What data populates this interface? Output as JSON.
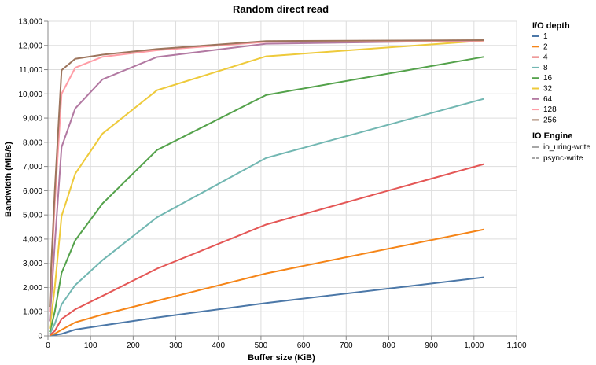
{
  "chart_data": {
    "type": "line",
    "title": "Random direct read",
    "xlabel": "Buffer size (KiB)",
    "ylabel": "Bandwidth (MiB/s)",
    "xlim": [
      0,
      1100
    ],
    "ylim": [
      0,
      13000
    ],
    "x_ticks": [
      0,
      100,
      200,
      300,
      400,
      500,
      600,
      700,
      800,
      900,
      1000,
      1100
    ],
    "y_ticks": [
      0,
      1000,
      2000,
      3000,
      4000,
      5000,
      6000,
      7000,
      8000,
      9000,
      10000,
      11000,
      12000,
      13000
    ],
    "x_tick_labels": [
      "0",
      "100",
      "200",
      "300",
      "400",
      "500",
      "600",
      "700",
      "800",
      "900",
      "1,000",
      "1,100"
    ],
    "y_tick_labels": [
      "0",
      "1,000",
      "2,000",
      "3,000",
      "4,000",
      "5,000",
      "6,000",
      "7,000",
      "8,000",
      "9,000",
      "10,000",
      "11,000",
      "12,000",
      "13,000"
    ],
    "grid": true,
    "legend_position": "right",
    "legend_title_color": "I/O depth",
    "legend_title_engine": "IO Engine",
    "x": [
      4,
      8,
      16,
      32,
      64,
      128,
      256,
      512,
      1024
    ],
    "series": [
      {
        "name": "1",
        "color": "#4c78a8",
        "values": [
          10,
          20,
          40,
          80,
          260,
          430,
          760,
          1360,
          2420
        ]
      },
      {
        "name": "2",
        "color": "#f58518",
        "values": [
          20,
          45,
          90,
          250,
          560,
          880,
          1450,
          2580,
          4400
        ]
      },
      {
        "name": "4",
        "color": "#e45756",
        "values": [
          40,
          90,
          200,
          700,
          1100,
          1650,
          2780,
          4600,
          7100
        ]
      },
      {
        "name": "8",
        "color": "#72b7b2",
        "values": [
          80,
          200,
          500,
          1300,
          2100,
          3130,
          4900,
          7350,
          9800
        ]
      },
      {
        "name": "16",
        "color": "#54a24b",
        "values": [
          160,
          400,
          1000,
          2600,
          3950,
          5470,
          7680,
          9950,
          11530
        ]
      },
      {
        "name": "32",
        "color": "#eeca3b",
        "values": [
          300,
          800,
          2000,
          4950,
          6700,
          8360,
          10150,
          11550,
          12200
        ]
      },
      {
        "name": "64",
        "color": "#b279a2",
        "values": [
          600,
          1600,
          3800,
          7800,
          9400,
          10600,
          11520,
          12070,
          12200
        ]
      },
      {
        "name": "128",
        "color": "#ff9da6",
        "values": [
          1000,
          2600,
          5500,
          10000,
          11080,
          11530,
          11800,
          12150,
          12200
        ]
      },
      {
        "name": "256",
        "color": "#9d755d",
        "values": [
          1200,
          3000,
          6000,
          10980,
          11450,
          11620,
          11850,
          12180,
          12220
        ]
      }
    ],
    "engines": [
      {
        "name": "io_uring-write",
        "dash": "solid"
      },
      {
        "name": "psync-write",
        "dash": "dashed"
      }
    ]
  }
}
